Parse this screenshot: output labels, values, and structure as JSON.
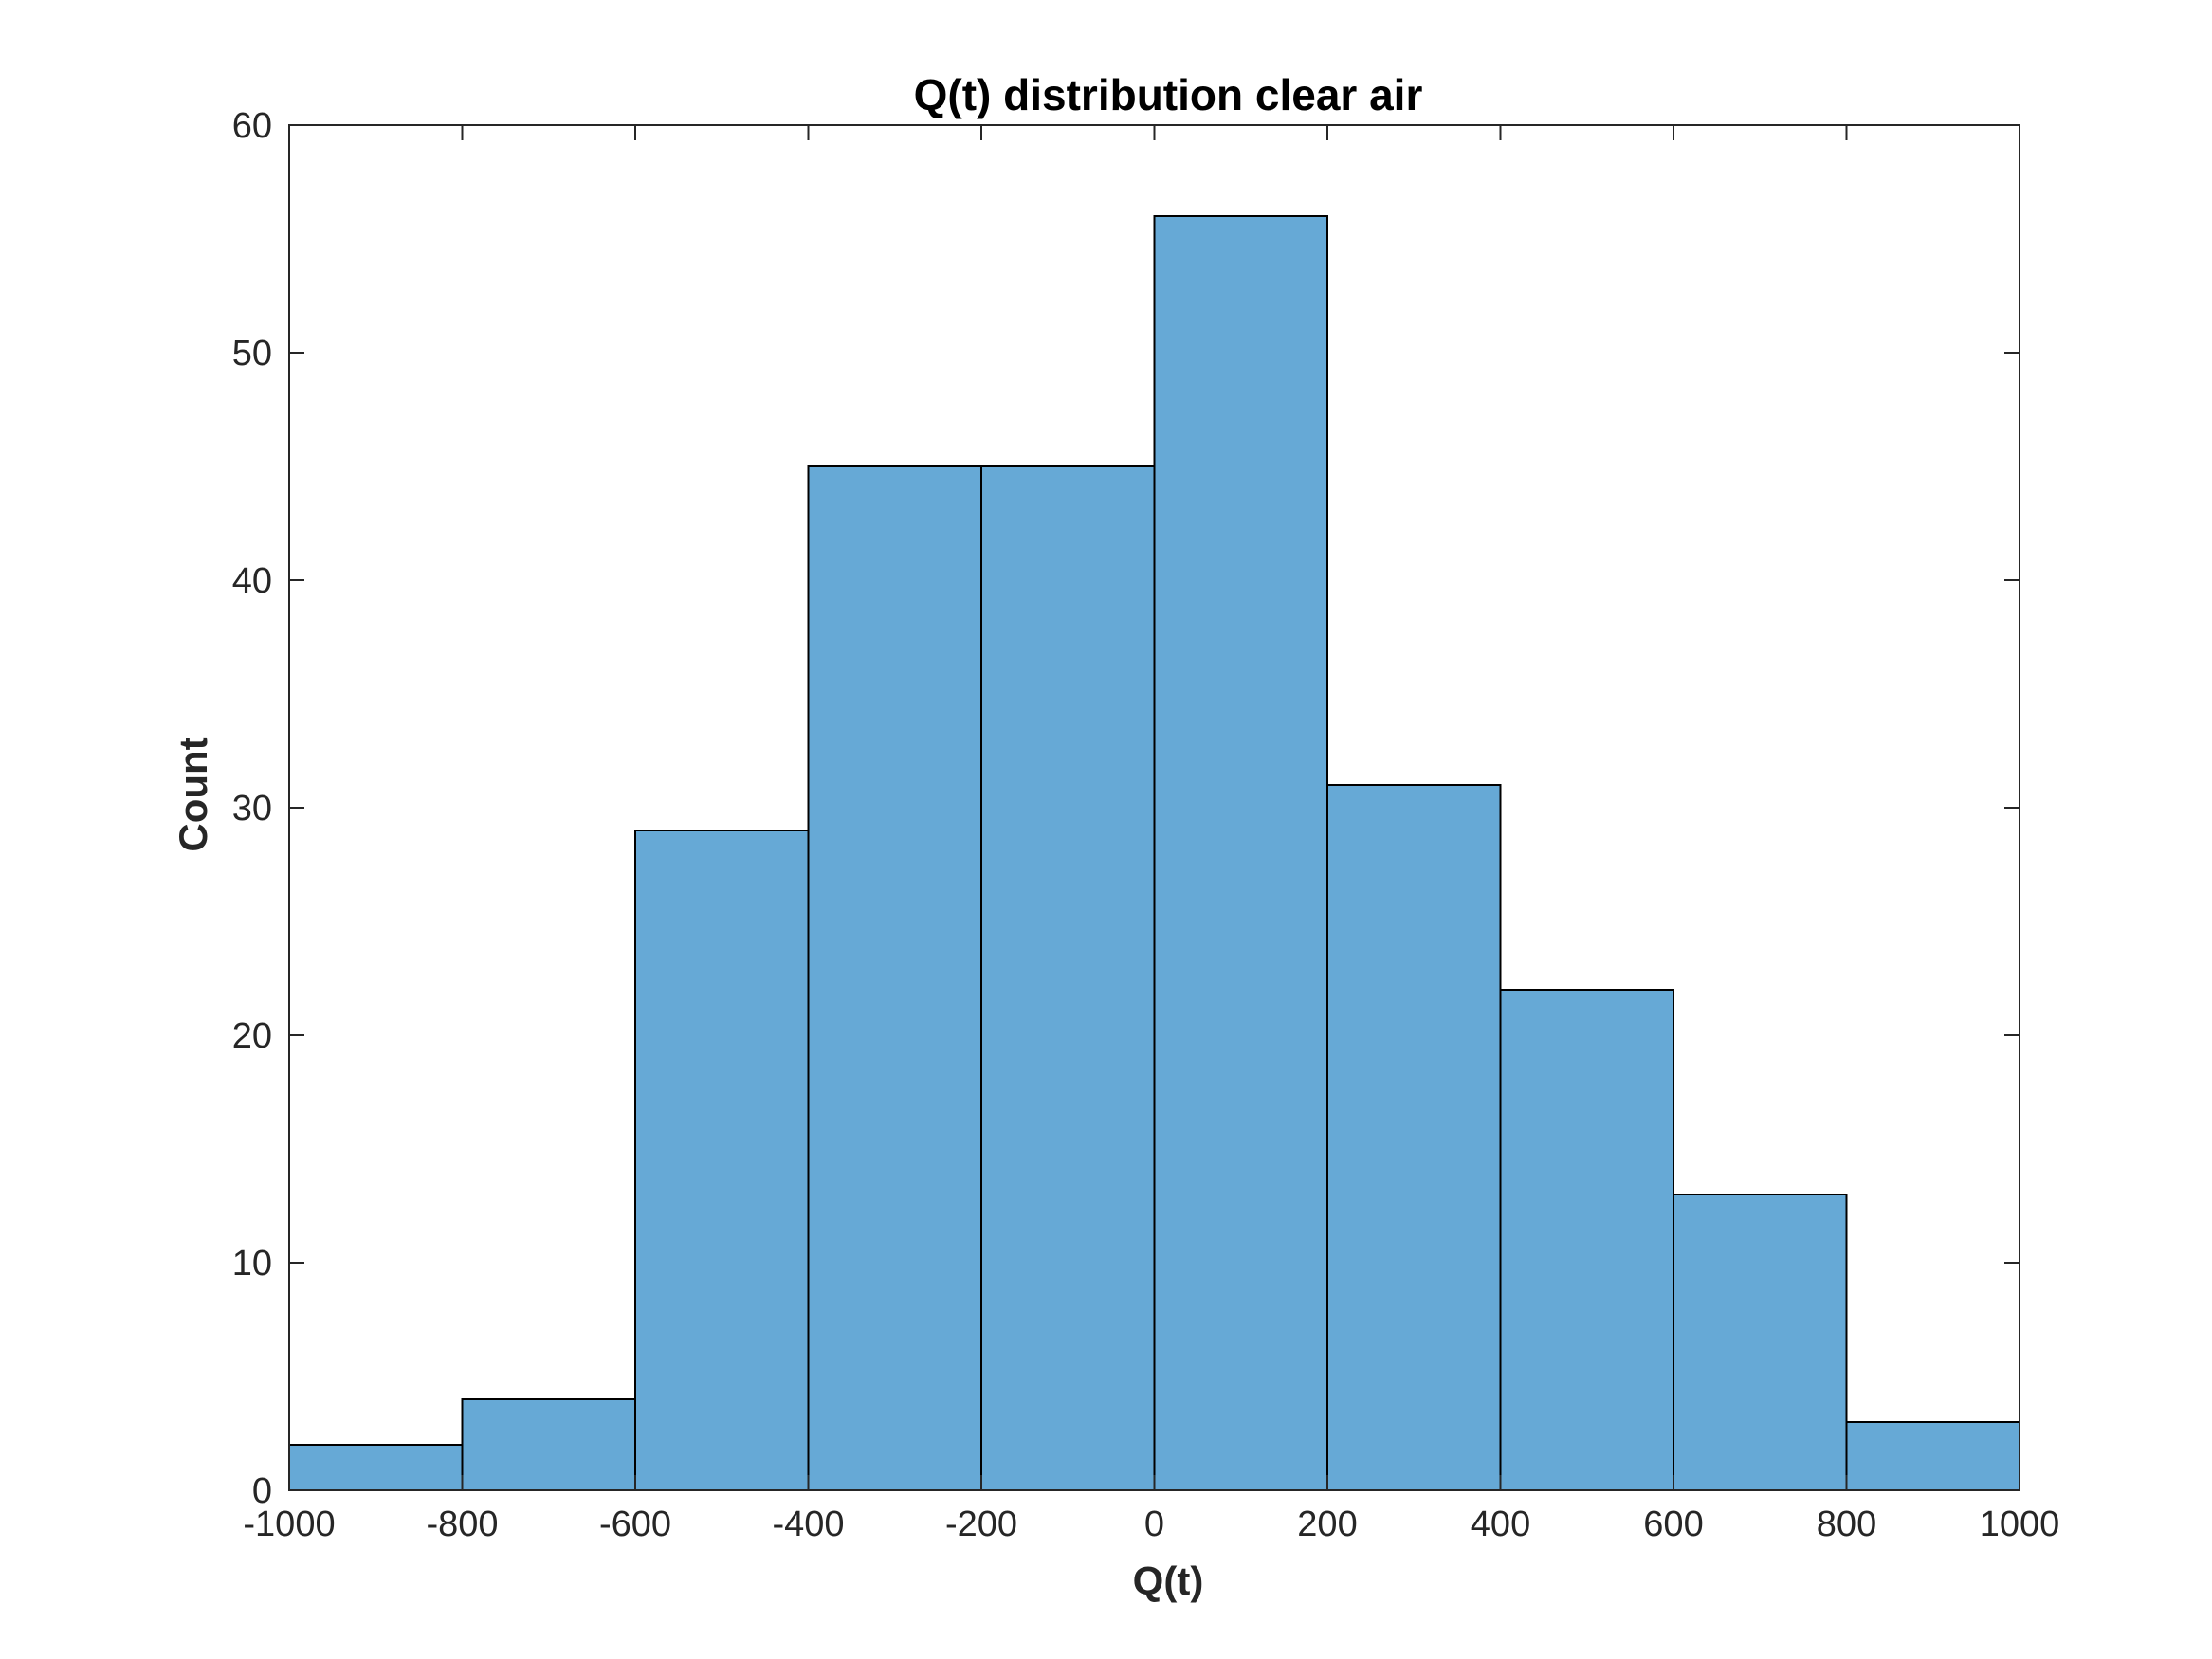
{
  "chart_data": {
    "type": "bar",
    "title": "Q(t) distribution clear air",
    "xlabel": "Q(t)",
    "ylabel": "Count",
    "xlim": [
      -1000,
      1000
    ],
    "ylim": [
      0,
      60
    ],
    "bin_edges": [
      -1000,
      -800,
      -600,
      -400,
      -200,
      0,
      200,
      400,
      600,
      800,
      1000
    ],
    "values": [
      2,
      4,
      29,
      45,
      45,
      56,
      31,
      22,
      13,
      3
    ],
    "x_ticks": [
      -1000,
      -800,
      -600,
      -400,
      -200,
      0,
      200,
      400,
      600,
      800,
      1000
    ],
    "x_tick_labels": [
      "-1000",
      "-800",
      "-600",
      "-400",
      "-200",
      "0",
      "200",
      "400",
      "600",
      "800",
      "1000"
    ],
    "y_ticks": [
      0,
      10,
      20,
      30,
      40,
      50,
      60
    ],
    "y_tick_labels": [
      "0",
      "10",
      "20",
      "30",
      "40",
      "50",
      "60"
    ],
    "grid": false,
    "bar_color": "#66a9d6",
    "edge_color": "#000000"
  }
}
